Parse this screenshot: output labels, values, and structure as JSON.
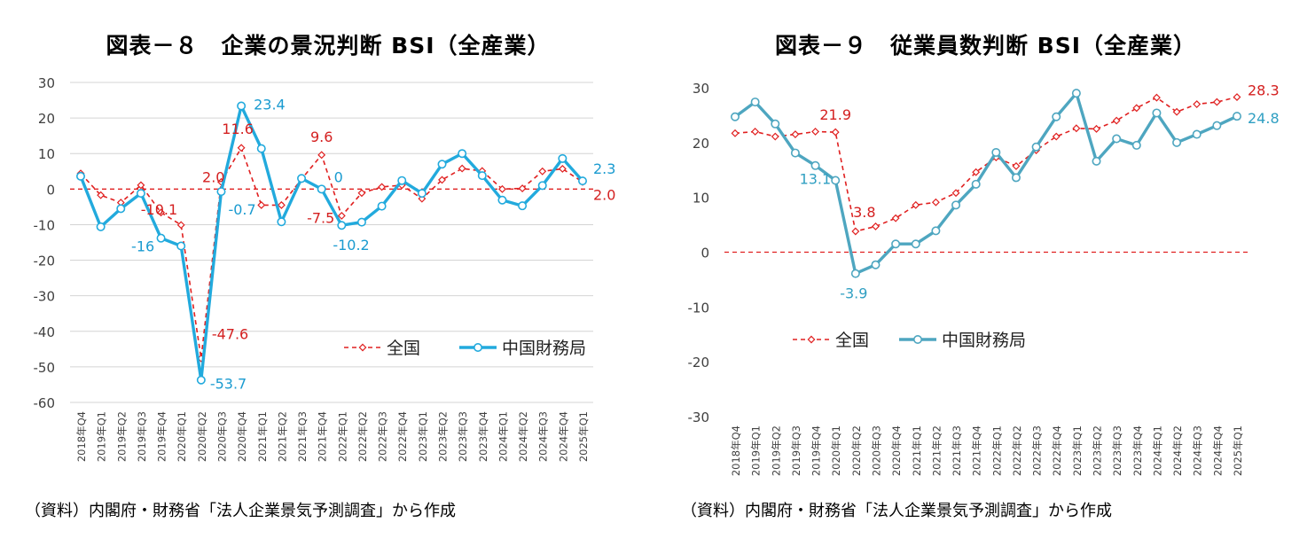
{
  "charts": [
    {
      "title": "図表－８　企業の景況判断 BSI（全産業）",
      "source": "（資料）内閣府・財務省「法人企業景気予測調査」から作成",
      "chart_data": {
        "type": "line",
        "title": "図表－８　企業の景況判断 BSI（全産業）",
        "xlabel": "",
        "ylabel": "",
        "ylim": [
          -60,
          30
        ],
        "yticks": [
          30,
          20,
          10,
          0,
          -10,
          -20,
          -30,
          -40,
          -50,
          -60
        ],
        "grid": true,
        "legend_position": "lower-right",
        "categories": [
          "2018年Q4",
          "2019年Q1",
          "2019年Q2",
          "2019年Q3",
          "2019年Q4",
          "2020年Q1",
          "2020年Q2",
          "2020年Q3",
          "2020年Q4",
          "2021年Q1",
          "2021年Q2",
          "2021年Q3",
          "2021年Q4",
          "2022年Q1",
          "2022年Q2",
          "2022年Q3",
          "2022年Q4",
          "2023年Q1",
          "2023年Q2",
          "2023年Q3",
          "2023年Q4",
          "2024年Q1",
          "2024年Q2",
          "2024年Q3",
          "2024年Q4",
          "2025年Q1"
        ],
        "series": [
          {
            "name": "全国",
            "color": "#e02020",
            "style": "dashed-diamond",
            "values": [
              4.4,
              -1.7,
              -3.8,
              1.1,
              -6.6,
              -10.1,
              -47.6,
              2.0,
              11.6,
              -4.5,
              -4.5,
              2.8,
              9.6,
              -7.5,
              -1.1,
              0.6,
              1.1,
              -2.7,
              2.6,
              5.8,
              5.1,
              0.0,
              0.2,
              5.0,
              5.7,
              2.0
            ]
          },
          {
            "name": "中国財務局",
            "color": "#22aadd",
            "style": "solid-circle",
            "values": [
              3.6,
              -10.6,
              -5.5,
              -1.2,
              -13.8,
              -16.0,
              -53.7,
              -0.7,
              23.4,
              11.4,
              -9.2,
              3.0,
              0.0,
              -10.2,
              -9.3,
              -4.8,
              2.4,
              -1.2,
              7.0,
              10.0,
              3.8,
              -3.1,
              -4.7,
              1.0,
              8.6,
              2.3
            ]
          }
        ],
        "annotations": [
          {
            "series": 0,
            "index": 5,
            "label": "-10.1"
          },
          {
            "series": 0,
            "index": 6,
            "label": "-47.6"
          },
          {
            "series": 0,
            "index": 7,
            "label": "2.0"
          },
          {
            "series": 0,
            "index": 8,
            "label": "11.6"
          },
          {
            "series": 0,
            "index": 12,
            "label": "9.6"
          },
          {
            "series": 0,
            "index": 13,
            "label": "-7.5"
          },
          {
            "series": 0,
            "index": 25,
            "label": "2.0"
          },
          {
            "series": 1,
            "index": 5,
            "label": "-16"
          },
          {
            "series": 1,
            "index": 6,
            "label": "-53.7"
          },
          {
            "series": 1,
            "index": 7,
            "label": "-0.7"
          },
          {
            "series": 1,
            "index": 8,
            "label": "23.4"
          },
          {
            "series": 1,
            "index": 12,
            "label": "0"
          },
          {
            "series": 1,
            "index": 13,
            "label": "-10.2"
          },
          {
            "series": 1,
            "index": 25,
            "label": "2.3"
          }
        ]
      }
    },
    {
      "title": "図表－９　従業員数判断 BSI（全産業）",
      "source": "（資料）内閣府・財務省「法人企業景気予測調査」から作成",
      "chart_data": {
        "type": "line",
        "title": "図表－９　従業員数判断 BSI（全産業）",
        "xlabel": "",
        "ylabel": "",
        "ylim": [
          -30,
          30
        ],
        "yticks": [
          30,
          20,
          10,
          0,
          -10,
          -20,
          -30
        ],
        "grid": false,
        "legend_position": "center-left",
        "categories": [
          "2018年Q4",
          "2019年Q1",
          "2019年Q2",
          "2019年Q3",
          "2019年Q4",
          "2020年Q1",
          "2020年Q2",
          "2020年Q3",
          "2020年Q4",
          "2021年Q1",
          "2021年Q2",
          "2021年Q3",
          "2021年Q4",
          "2022年Q1",
          "2022年Q2",
          "2022年Q3",
          "2022年Q4",
          "2023年Q1",
          "2023年Q2",
          "2023年Q3",
          "2023年Q4",
          "2024年Q1",
          "2024年Q2",
          "2024年Q3",
          "2024年Q4",
          "2025年Q1"
        ],
        "series": [
          {
            "name": "全国",
            "color": "#e02020",
            "style": "dashed-diamond",
            "values": [
              21.7,
              22.0,
              21.1,
              21.5,
              22.0,
              21.9,
              3.8,
              4.7,
              6.2,
              8.6,
              9.1,
              10.8,
              14.6,
              17.3,
              15.7,
              18.6,
              21.1,
              22.6,
              22.5,
              24.0,
              26.3,
              28.2,
              25.6,
              27.0,
              27.4,
              28.3
            ]
          },
          {
            "name": "中国財務局",
            "color": "#4ea6c0",
            "style": "solid-circle",
            "values": [
              24.7,
              27.4,
              23.4,
              18.1,
              15.8,
              13.1,
              -3.9,
              -2.3,
              1.5,
              1.5,
              3.9,
              8.6,
              12.4,
              18.2,
              13.6,
              19.2,
              24.7,
              29.0,
              16.6,
              20.7,
              19.5,
              25.4,
              20.0,
              21.5,
              23.1,
              24.8
            ]
          }
        ],
        "annotations": [
          {
            "series": 0,
            "index": 5,
            "label": "21.9"
          },
          {
            "series": 0,
            "index": 6,
            "label": "3.8"
          },
          {
            "series": 0,
            "index": 25,
            "label": "28.3"
          },
          {
            "series": 1,
            "index": 5,
            "label": "13.1"
          },
          {
            "series": 1,
            "index": 6,
            "label": "-3.9"
          },
          {
            "series": 1,
            "index": 25,
            "label": "24.8"
          }
        ]
      }
    }
  ]
}
